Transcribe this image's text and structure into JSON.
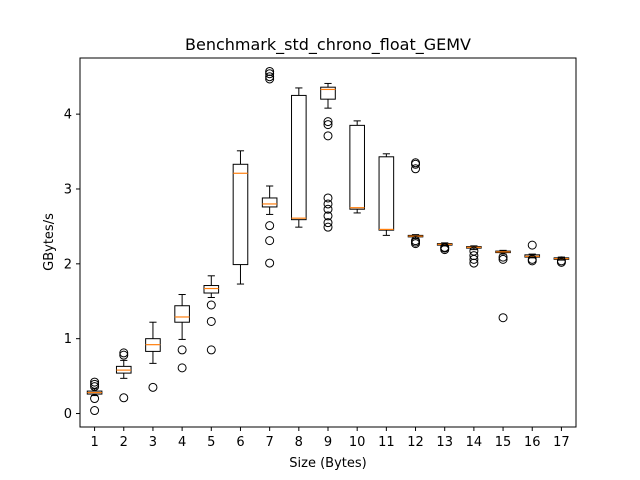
{
  "chart_data": {
    "type": "box",
    "title": "Benchmark_std_chrono_float_GEMV",
    "xlabel": "Size (Bytes)",
    "ylabel": "GBytes/s",
    "ylim": [
      -0.18,
      4.75
    ],
    "yticks": [
      0,
      1,
      2,
      3,
      4
    ],
    "grid": false,
    "categories": [
      "1",
      "2",
      "3",
      "4",
      "5",
      "6",
      "7",
      "8",
      "9",
      "10",
      "11",
      "12",
      "13",
      "14",
      "15",
      "16",
      "17"
    ],
    "boxes": [
      {
        "category": "1",
        "whislo": 0.24,
        "q1": 0.26,
        "median": 0.28,
        "q3": 0.3,
        "whishi": 0.33,
        "fliers": [
          0.04,
          0.2,
          0.36,
          0.39,
          0.42
        ]
      },
      {
        "category": "2",
        "whislo": 0.47,
        "q1": 0.54,
        "median": 0.58,
        "q3": 0.63,
        "whishi": 0.71,
        "fliers": [
          0.21,
          0.78,
          0.81
        ]
      },
      {
        "category": "3",
        "whislo": 0.67,
        "q1": 0.83,
        "median": 0.92,
        "q3": 1.0,
        "whishi": 1.22,
        "fliers": [
          0.35
        ]
      },
      {
        "category": "4",
        "whislo": 0.99,
        "q1": 1.22,
        "median": 1.29,
        "q3": 1.44,
        "whishi": 1.59,
        "fliers": [
          0.61,
          0.85
        ]
      },
      {
        "category": "5",
        "whislo": 1.55,
        "q1": 1.61,
        "median": 1.67,
        "q3": 1.71,
        "whishi": 1.84,
        "fliers": [
          0.85,
          1.23,
          1.45
        ]
      },
      {
        "category": "6",
        "whislo": 1.73,
        "q1": 1.99,
        "median": 3.21,
        "q3": 3.33,
        "whishi": 3.51,
        "fliers": []
      },
      {
        "category": "7",
        "whislo": 2.66,
        "q1": 2.76,
        "median": 2.8,
        "q3": 2.88,
        "whishi": 3.04,
        "fliers": [
          2.01,
          2.31,
          2.51,
          4.47,
          4.5,
          4.54,
          4.57
        ]
      },
      {
        "category": "8",
        "whislo": 2.49,
        "q1": 2.59,
        "median": 2.61,
        "q3": 4.25,
        "whishi": 4.35,
        "fliers": []
      },
      {
        "category": "9",
        "whislo": 4.08,
        "q1": 4.2,
        "median": 4.33,
        "q3": 4.36,
        "whishi": 4.41,
        "fliers": [
          2.49,
          2.55,
          2.64,
          2.73,
          2.8,
          2.88,
          3.71,
          3.86,
          3.9
        ]
      },
      {
        "category": "10",
        "whislo": 2.68,
        "q1": 2.73,
        "median": 2.75,
        "q3": 3.85,
        "whishi": 3.91,
        "fliers": []
      },
      {
        "category": "11",
        "whislo": 2.38,
        "q1": 2.45,
        "median": 2.46,
        "q3": 3.43,
        "whishi": 3.47,
        "fliers": []
      },
      {
        "category": "12",
        "whislo": 2.34,
        "q1": 2.36,
        "median": 2.37,
        "q3": 2.38,
        "whishi": 2.39,
        "fliers": [
          2.27,
          2.29,
          2.31,
          3.27,
          3.33,
          3.35
        ]
      },
      {
        "category": "13",
        "whislo": 2.24,
        "q1": 2.25,
        "median": 2.26,
        "q3": 2.27,
        "whishi": 2.28,
        "fliers": [
          2.19,
          2.21,
          2.22
        ]
      },
      {
        "category": "14",
        "whislo": 2.19,
        "q1": 2.21,
        "median": 2.22,
        "q3": 2.23,
        "whishi": 2.24,
        "fliers": [
          2.01,
          2.06,
          2.11,
          2.17
        ]
      },
      {
        "category": "15",
        "whislo": 2.13,
        "q1": 2.15,
        "median": 2.16,
        "q3": 2.17,
        "whishi": 2.18,
        "fliers": [
          1.28,
          2.06,
          2.09
        ]
      },
      {
        "category": "16",
        "whislo": 2.08,
        "q1": 2.09,
        "median": 2.1,
        "q3": 2.12,
        "whishi": 2.13,
        "fliers": [
          2.04,
          2.06,
          2.25
        ]
      },
      {
        "category": "17",
        "whislo": 2.05,
        "q1": 2.06,
        "median": 2.07,
        "q3": 2.08,
        "whishi": 2.09,
        "fliers": [
          2.02,
          2.04
        ]
      }
    ],
    "colors": {
      "box": "#000000",
      "median": "#ff7f0e",
      "flier": "#000000",
      "background": "#ffffff"
    }
  }
}
